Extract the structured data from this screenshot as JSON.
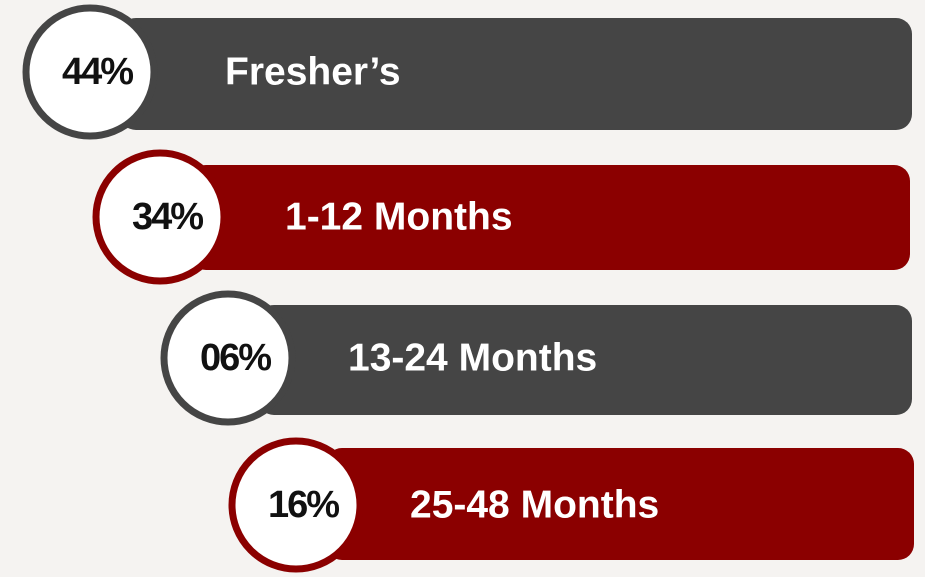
{
  "items": [
    {
      "percent": "44%",
      "label": "Fresher’s",
      "color": "#454545"
    },
    {
      "percent": "34%",
      "label": "1-12 Months",
      "color": "#8b0000"
    },
    {
      "percent": "06%",
      "label": "13-24 Months",
      "color": "#454545"
    },
    {
      "percent": "16%",
      "label": "25-48 Months",
      "color": "#8b0000"
    }
  ]
}
